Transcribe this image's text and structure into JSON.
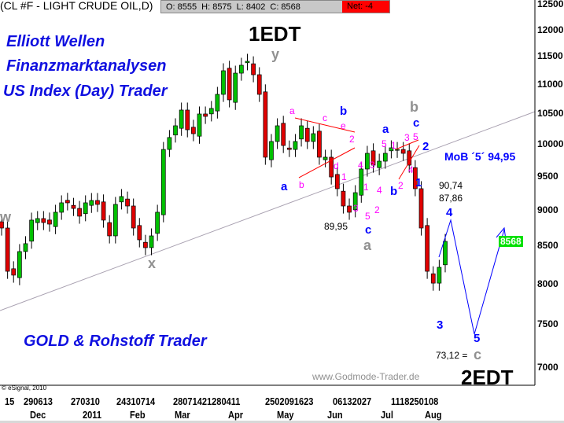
{
  "header": {
    "title": "(CL #F - LIGHT CRUDE OIL,D)",
    "open": "O: 8555",
    "high": "H: 8575",
    "low": "L: 8402",
    "close": "C: 8568",
    "net": "Net: -4"
  },
  "colors": {
    "up": "#00c000",
    "down": "#e00000",
    "trend": "#a8a0b0",
    "wave_path": "#0000ff",
    "triangle": "#ff0000",
    "net_bg": "#ff0000",
    "last_bg": "#00e000"
  },
  "chart_data": {
    "type": "candlestick",
    "y_scale": "log",
    "ylim": [
      6900,
      12550
    ],
    "y_ticks": [
      "12500",
      "12000",
      "11500",
      "11000",
      "10500",
      "10000",
      "9500",
      "9000",
      "8500",
      "8000",
      "7500",
      "7000"
    ],
    "last_price": "8568",
    "closes": [
      8753,
      8169,
      8119,
      8430,
      8537,
      8864,
      8886,
      8830,
      8808,
      8976,
      9112,
      9112,
      9031,
      8920,
      9112,
      9146,
      9089,
      8864,
      8644,
      9089,
      9204,
      9066,
      8753,
      8590,
      8483,
      8644,
      8976,
      9922,
      10113,
      10304,
      10566,
      10239,
      10175,
      10500,
      10460,
      10593,
      10834,
      11250,
      10740,
      11207,
      11349,
      11421,
      11179,
      10834,
      9800,
      10049,
      10304,
      9985,
      9922,
      10049,
      10304,
      10049,
      10175,
      9800,
      9800,
      9496,
      9320,
      9066,
      8976,
      9261,
      9617,
      9861,
      9677,
      9738,
      9861,
      9948,
      9922,
      9861,
      9677,
      9320,
      8753,
      8169,
      8016,
      8221,
      8568
    ],
    "x_ticks_row1": [
      "15",
      "290613",
      "270310",
      "24310714",
      "28071421280411",
      "2502091623",
      "06132027",
      "1118250108"
    ],
    "x_ticks_row2": [
      "Dec",
      "2011",
      "Feb",
      "Mar",
      "Apr",
      "May",
      "Jun",
      "Jul",
      "Aug"
    ],
    "grid": false
  },
  "promo": {
    "line1": "Elliott Wellen",
    "line2": "Finanzmarktanalysen",
    "line3": "US Index (Day) Trader",
    "line4": "GOLD & Rohstoff Trader"
  },
  "labels": {
    "edt1": "1EDT",
    "edt2": "2EDT",
    "w": "w",
    "x": "x",
    "y": "y",
    "tri_a": "a",
    "tri_b": "b",
    "tri_c": "c",
    "tri_d": "d",
    "tri_e": "e",
    "blue_b1": "b",
    "blue_a1": "a",
    "m2a": "2",
    "m1a": "1",
    "m4a": "4",
    "m3a": "3",
    "m1b": "1",
    "m4b": "4",
    "m3b": "3",
    "m5a": "5",
    "m2b": "2",
    "blue_c1": "c",
    "gray_a": "a",
    "blue_a2": "a",
    "m5b": "5",
    "m1c": "1",
    "blue_b2": "b",
    "m2c": "2",
    "m4c": "4",
    "m3c": "3",
    "m5c": "5",
    "gray_b": "b",
    "blue_c2": "c",
    "w2": "2",
    "w1": "1",
    "w3": "3",
    "w4": "4",
    "w5": "5",
    "gray_c": "c",
    "p8995": "89,95",
    "p9074": "90,74",
    "p8786": "87,86",
    "p7312": "73,12 =",
    "mob": "MoB ´5´ 94,95"
  },
  "footer": {
    "website": "www.Godmode-Trader.de",
    "copyright": "© eSignal, 2010"
  }
}
